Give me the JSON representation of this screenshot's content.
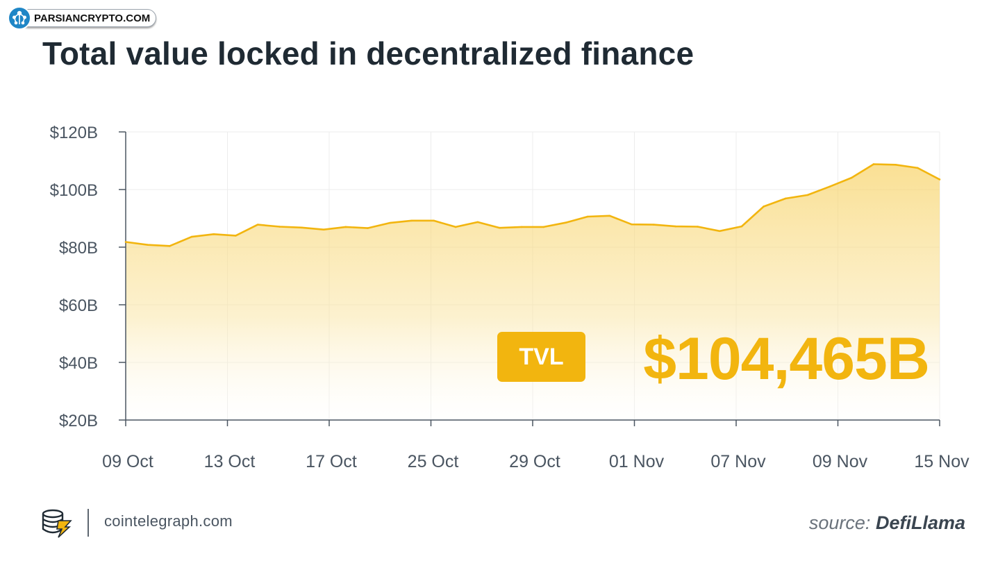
{
  "watermark": {
    "text": "PARSIANCRYPTO.COM",
    "icon": "network-tree-icon",
    "color": "#1f86c6"
  },
  "title": "Total value locked in decentralized finance",
  "badge": {
    "label": "TVL",
    "value": "$104,465B",
    "color": "#f2b50f"
  },
  "footer": {
    "logo_icon": "cointelegraph-coins-icon",
    "site": "cointelegraph.com",
    "source_prefix": "source:",
    "source_name": "DefiLlama"
  },
  "chart_data": {
    "type": "area",
    "title": "Total value locked in decentralized finance",
    "xlabel": "",
    "ylabel": "",
    "x_ticks": [
      "09 Oct",
      "13 Oct",
      "17 Oct",
      "25 Oct",
      "29 Oct",
      "01 Nov",
      "07 Nov",
      "09 Nov",
      "15 Nov"
    ],
    "y_ticks": [
      "$20B",
      "$40B",
      "$60B",
      "$80B",
      "$100B",
      "$120B"
    ],
    "ylim": [
      20,
      120
    ],
    "unit": "B",
    "grid": true,
    "color": "#f2b50f",
    "series": [
      {
        "name": "",
        "values": [
          81.8,
          80.8,
          80.4,
          83.6,
          84.5,
          84.0,
          87.8,
          87.1,
          86.8,
          86.1,
          87.0,
          86.6,
          88.4,
          89.2,
          89.2,
          87.0,
          88.7,
          86.7,
          87.0,
          87.0,
          88.5,
          90.6,
          90.9,
          87.9,
          87.8,
          87.2,
          87.1,
          85.6,
          87.2,
          94.1,
          96.9,
          98.1,
          101.0,
          104.1,
          108.8,
          108.6,
          107.5,
          103.5
        ]
      }
    ]
  }
}
